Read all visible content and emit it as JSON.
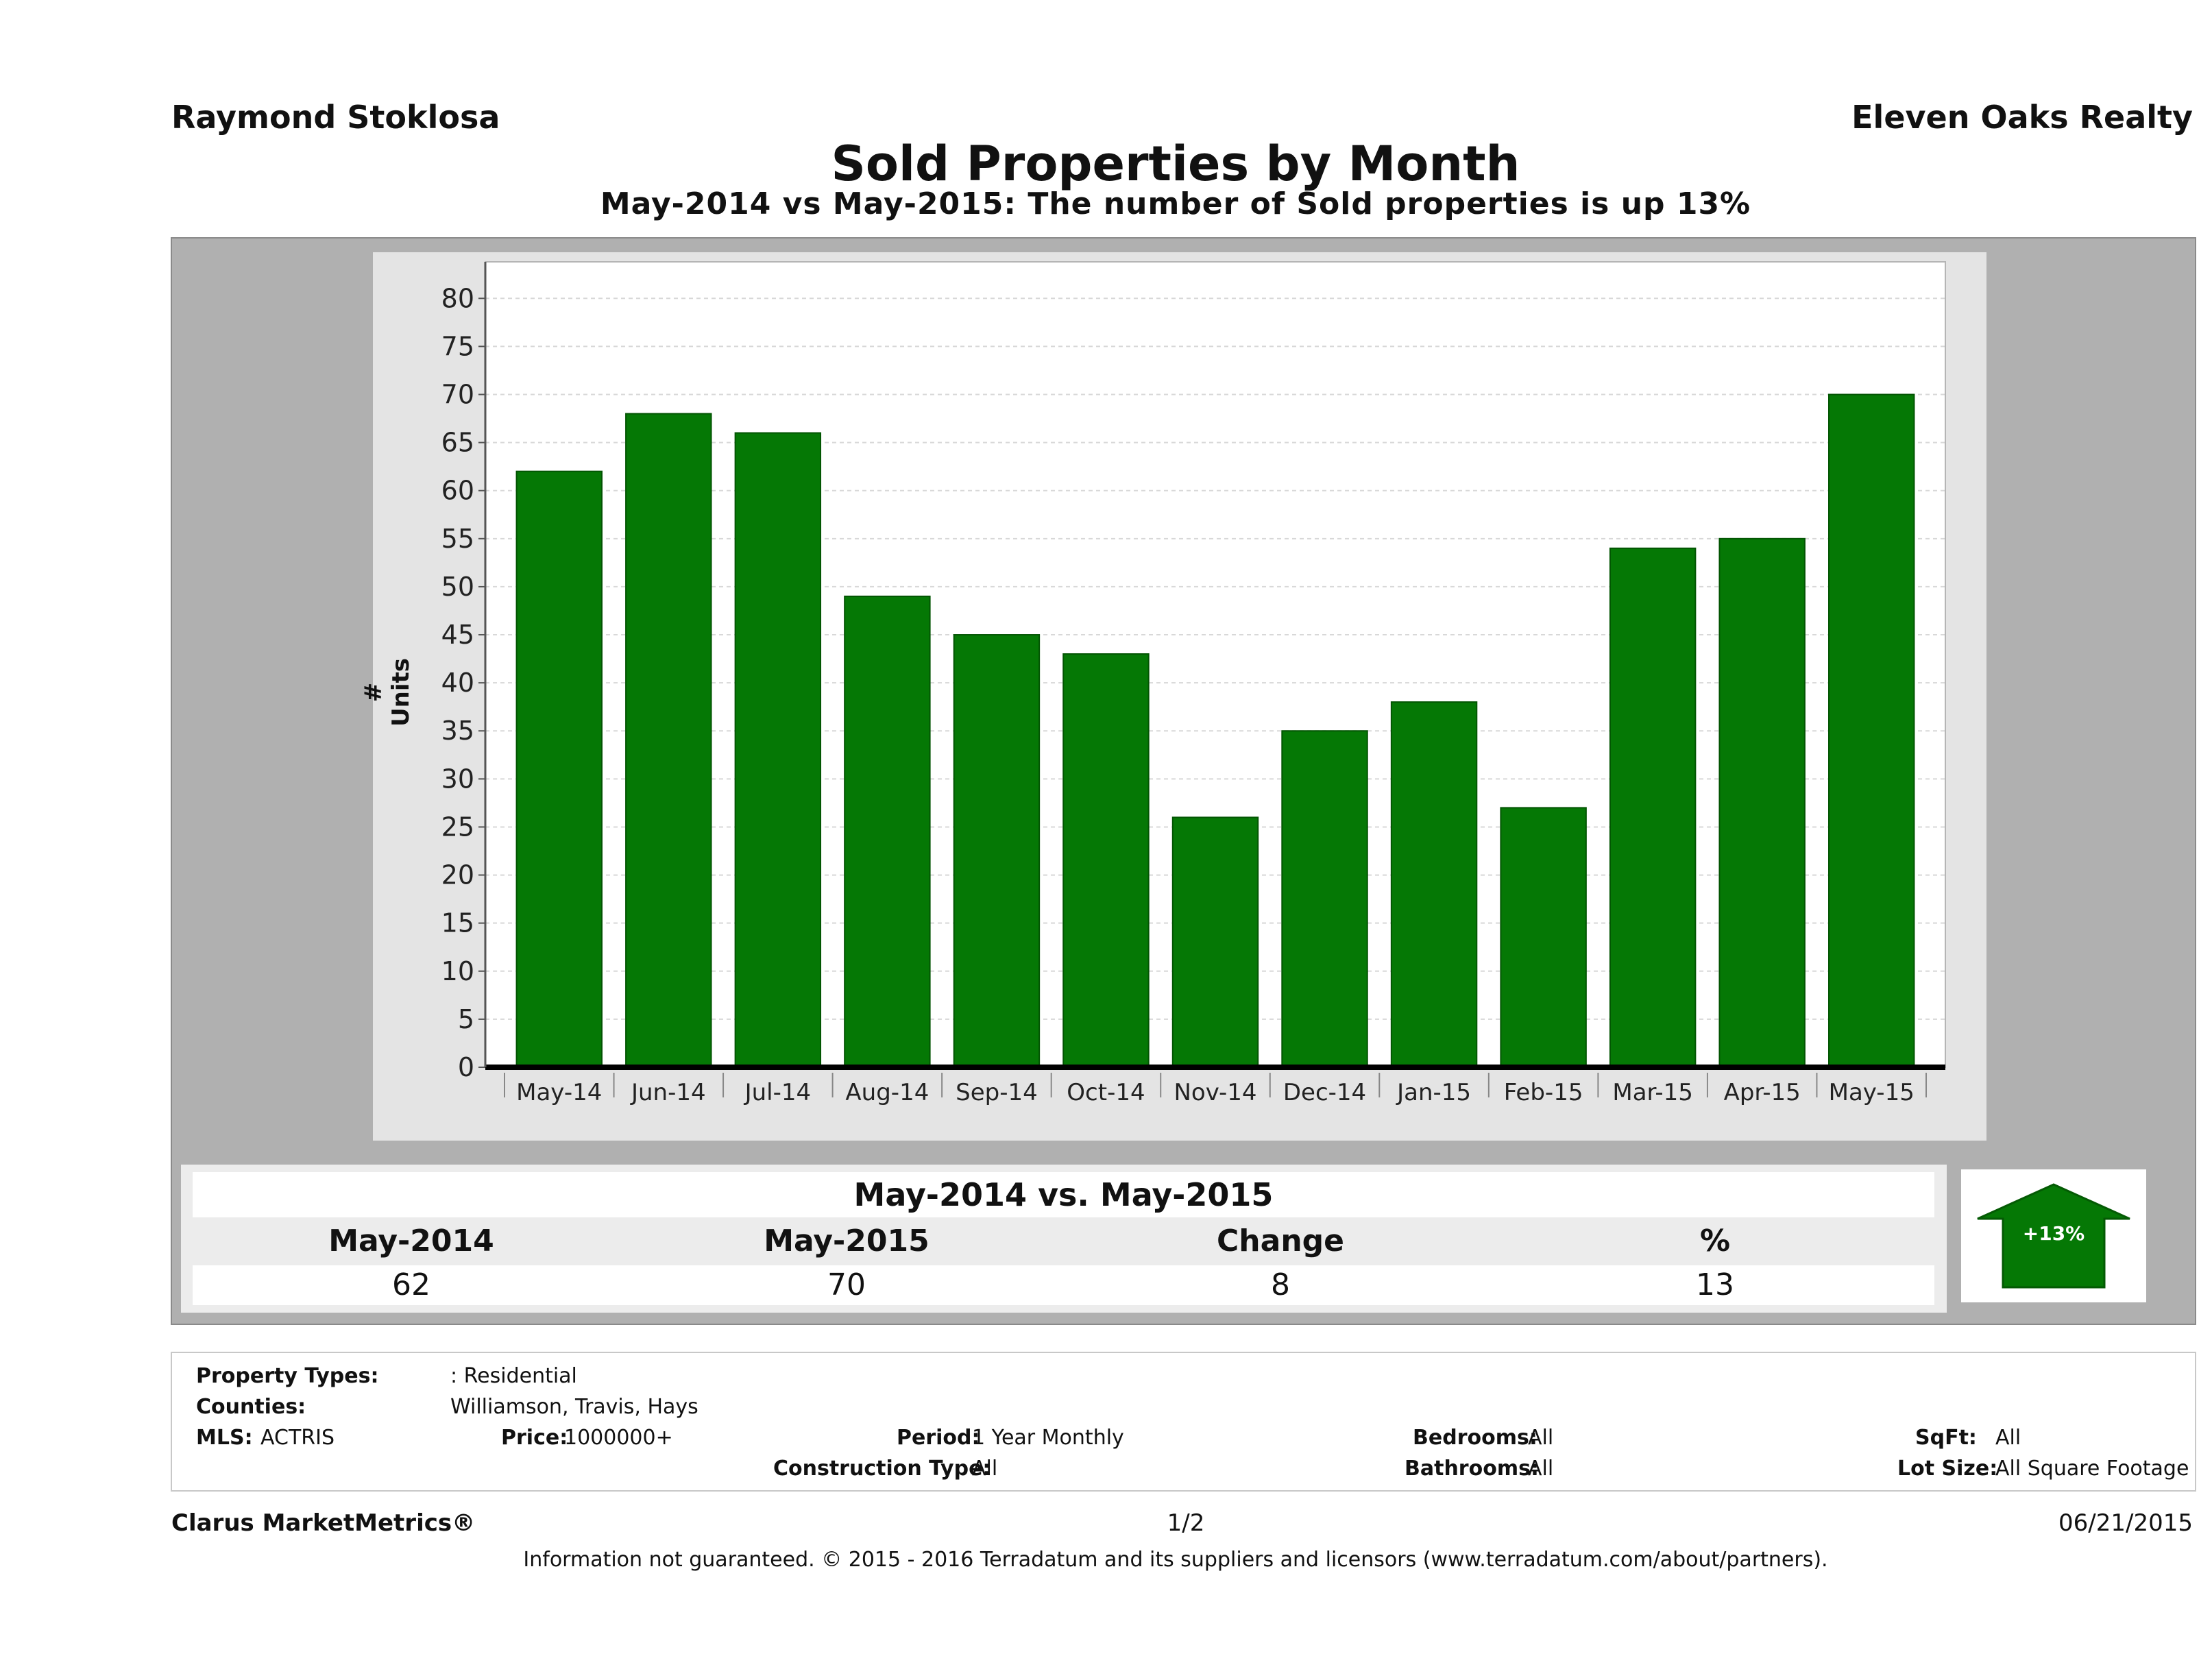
{
  "header": {
    "agent": "Raymond Stoklosa",
    "company": "Eleven Oaks Realty"
  },
  "chart_data": {
    "type": "bar",
    "title": "Sold Properties by Month",
    "subtitle": "May-2014 vs May-2015: The number of Sold  properties is up 13%",
    "ylabel": "# Units",
    "xlabel": "",
    "ylim": [
      0,
      80
    ],
    "yticks": [
      0,
      5,
      10,
      15,
      20,
      25,
      30,
      35,
      40,
      45,
      50,
      55,
      60,
      65,
      70,
      75,
      80
    ],
    "grid": true,
    "bar_color": "#057805",
    "categories": [
      "May-14",
      "Jun-14",
      "Jul-14",
      "Aug-14",
      "Sep-14",
      "Oct-14",
      "Nov-14",
      "Dec-14",
      "Jan-15",
      "Feb-15",
      "Mar-15",
      "Apr-15",
      "May-15"
    ],
    "values": [
      62,
      68,
      66,
      49,
      45,
      43,
      26,
      35,
      38,
      27,
      54,
      55,
      70
    ]
  },
  "comparison": {
    "title": "May-2014 vs. May-2015",
    "headers": [
      "May-2014",
      "May-2015",
      "Change",
      "%"
    ],
    "values": [
      "62",
      "70",
      "8",
      "13"
    ],
    "badge": "+13%",
    "badge_icon": "up-arrow-icon",
    "badge_color": "#057805"
  },
  "criteria": {
    "property_types_label": "Property Types:",
    "property_types_value": ": Residential",
    "counties_label": "Counties:",
    "counties_value": "Williamson, Travis, Hays",
    "mls_label": "MLS:",
    "mls_value": "ACTRIS",
    "price_label": "Price:",
    "price_value": "1000000+",
    "period_label": "Period:",
    "period_value": "1 Year Monthly",
    "construction_label": "Construction Type:",
    "construction_value": "All",
    "bedrooms_label": "Bedrooms:",
    "bedrooms_value": "All",
    "bathrooms_label": "Bathrooms:",
    "bathrooms_value": "All",
    "sqft_label": "SqFt:",
    "sqft_value": "All",
    "lotsize_label": "Lot Size:",
    "lotsize_value": "All Square Footage"
  },
  "footer": {
    "brand": "Clarus MarketMetrics®",
    "page": "1/2",
    "date": "06/21/2015",
    "disclaimer": "Information not guaranteed. © 2015 - 2016 Terradatum and its suppliers and licensors (www.terradatum.com/about/partners)."
  }
}
